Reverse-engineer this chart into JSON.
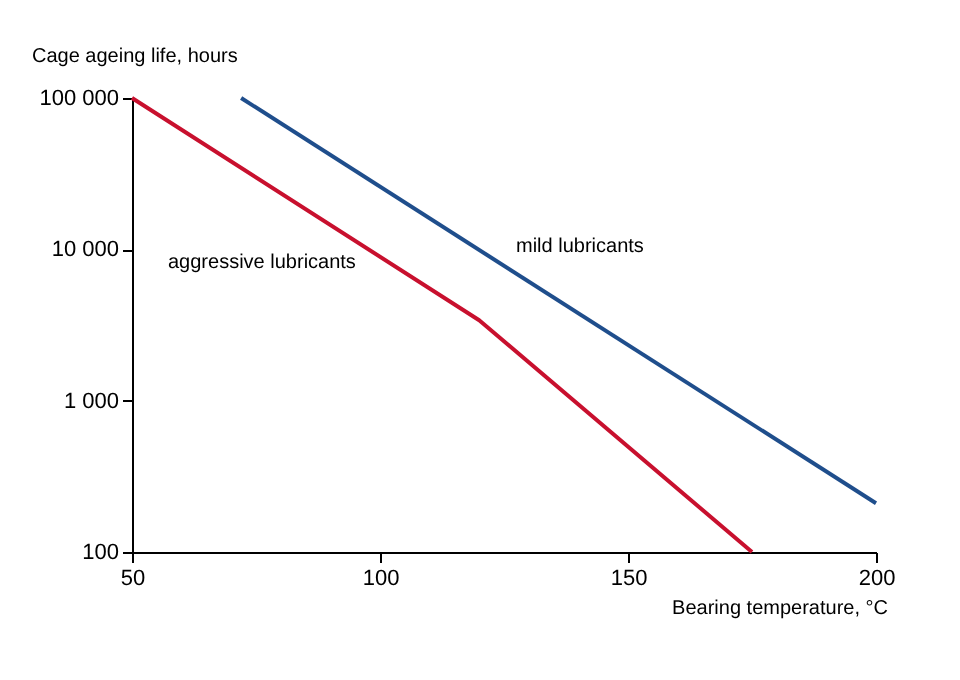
{
  "chart_data": {
    "type": "line",
    "xlabel": "Bearing temperature, °C",
    "ylabel": "Cage ageing life, hours",
    "xlim": [
      50,
      200
    ],
    "xticks": [
      50,
      100,
      150,
      200
    ],
    "ylim": [
      100,
      100000
    ],
    "yticks": [
      {
        "value": 100000,
        "label": "100 000"
      },
      {
        "value": 10000,
        "label": "10 000"
      },
      {
        "value": 1000,
        "label": "1 000"
      },
      {
        "value": 100,
        "label": "100"
      }
    ],
    "log": "y",
    "grid": false,
    "marker": "none",
    "line_style": "solid",
    "series": [
      {
        "color": "#c8102e",
        "x": [
          50,
          120,
          175
        ],
        "values": [
          100000,
          3400,
          100
        ]
      },
      {
        "color": "#1f4e8c",
        "x": [
          72,
          200
        ],
        "values": [
          100000,
          210
        ]
      }
    ],
    "annotations": [
      "aggressive lubricants",
      "mild lubricants"
    ]
  }
}
